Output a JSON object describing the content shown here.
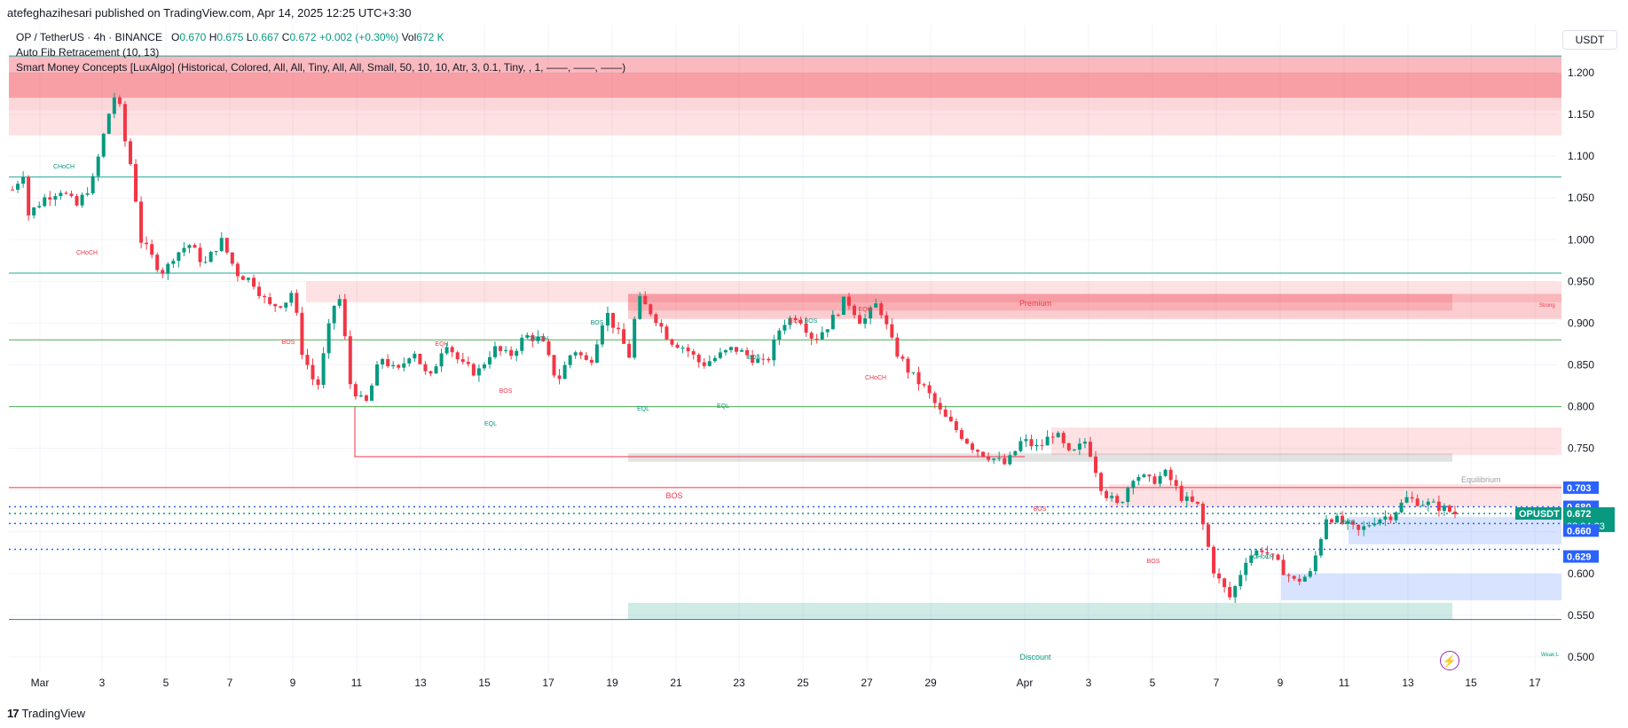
{
  "header": {
    "published": "atefeghazihesari published on TradingView.com, Apr 14, 2025 12:25 UTC+3:30"
  },
  "legend": {
    "symbol": "OP / TetherUS · 4h · BINANCE",
    "o_label": "O",
    "o_value": "0.670",
    "h_label": "H",
    "h_value": "0.675",
    "l_label": "L",
    "l_value": "0.667",
    "c_label": "C",
    "c_value": "0.672",
    "change": "+0.002 (+0.30%)",
    "vol_label": "Vol",
    "vol_value": "672 K",
    "indicator1": "Auto Fib Retracement (10, 13)",
    "indicator2": "Smart Money Concepts [LuxAlgo] (Historical, Colored, All, All, Tiny, All, All, Small, 50, 10, 10, Atr, 3, 0.1, Tiny, , 1, ——, ——, ——)"
  },
  "currency": "USDT",
  "footer": {
    "logo": "17",
    "brand": "TradingView"
  },
  "price_labels": {
    "top": "0.703",
    "second": "0.680",
    "symbol": "OPUSDT",
    "last": "0.672",
    "countdown": "03:04:23",
    "third": "0.660",
    "bottom": "0.629"
  },
  "colors": {
    "up": "#089981",
    "down": "#f23645",
    "blue": "#2962ff",
    "fib_teal": "#26a69a",
    "fib_green": "#4caf50",
    "fib_red": "#f23645"
  },
  "icons": {
    "alert": "lightning-bolt-icon"
  },
  "chart_data": {
    "type": "candlestick",
    "symbol": "OP / TetherUS",
    "interval": "4h",
    "ylim": [
      0.48,
      1.22
    ],
    "y_ticks": [
      "1.200",
      "1.150",
      "1.100",
      "1.050",
      "1.000",
      "0.950",
      "0.900",
      "0.850",
      "0.800",
      "0.750",
      "0.700",
      "0.650",
      "0.600",
      "0.550",
      "0.500"
    ],
    "x_ticks": [
      "Mar",
      "3",
      "5",
      "7",
      "9",
      "11",
      "13",
      "15",
      "17",
      "19",
      "21",
      "23",
      "25",
      "27",
      "29",
      "Apr",
      "3",
      "5",
      "7",
      "9",
      "11",
      "13",
      "15",
      "17"
    ],
    "path": [
      [
        0,
        1.06
      ],
      [
        1,
        1.09
      ],
      [
        1,
        1.03
      ],
      [
        2,
        1.05
      ],
      [
        3,
        1.06
      ],
      [
        4,
        1.04
      ],
      [
        5,
        1.07
      ],
      [
        6,
        1.15
      ],
      [
        6.5,
        1.18
      ],
      [
        7,
        1.12
      ],
      [
        7.5,
        1.08
      ],
      [
        8,
        1.0
      ],
      [
        9,
        0.97
      ],
      [
        9.5,
        0.96
      ],
      [
        10,
        0.98
      ],
      [
        11,
        0.995
      ],
      [
        12,
        0.97
      ],
      [
        13,
        1.0
      ],
      [
        14,
        0.96
      ],
      [
        15,
        0.95
      ],
      [
        16,
        0.92
      ],
      [
        17,
        0.925
      ],
      [
        17.5,
        0.94
      ],
      [
        18,
        0.87
      ],
      [
        19,
        0.82
      ],
      [
        20,
        0.92
      ],
      [
        20.5,
        0.93
      ],
      [
        21,
        0.83
      ],
      [
        22,
        0.8
      ],
      [
        23,
        0.86
      ],
      [
        24,
        0.84
      ],
      [
        25,
        0.87
      ],
      [
        26,
        0.83
      ],
      [
        27,
        0.88
      ],
      [
        28,
        0.85
      ],
      [
        29,
        0.84
      ],
      [
        30,
        0.87
      ],
      [
        31,
        0.86
      ],
      [
        32,
        0.885
      ],
      [
        33,
        0.88
      ],
      [
        34,
        0.83
      ],
      [
        35,
        0.87
      ],
      [
        36,
        0.85
      ],
      [
        37,
        0.915
      ],
      [
        38,
        0.88
      ],
      [
        38.5,
        0.86
      ],
      [
        39,
        0.93
      ],
      [
        40,
        0.91
      ],
      [
        41,
        0.88
      ],
      [
        42,
        0.87
      ],
      [
        43,
        0.85
      ],
      [
        44,
        0.86
      ],
      [
        45,
        0.87
      ],
      [
        46,
        0.86
      ],
      [
        47,
        0.85
      ],
      [
        48,
        0.9
      ],
      [
        49,
        0.91
      ],
      [
        50,
        0.88
      ],
      [
        51,
        0.9
      ],
      [
        52,
        0.93
      ],
      [
        53,
        0.9
      ],
      [
        54,
        0.925
      ],
      [
        55,
        0.87
      ],
      [
        56,
        0.84
      ],
      [
        57,
        0.82
      ],
      [
        58,
        0.79
      ],
      [
        59,
        0.77
      ],
      [
        60,
        0.75
      ],
      [
        61,
        0.74
      ],
      [
        62,
        0.73
      ],
      [
        63,
        0.76
      ],
      [
        64,
        0.75
      ],
      [
        65,
        0.77
      ],
      [
        66,
        0.74
      ],
      [
        67,
        0.76
      ],
      [
        68,
        0.7
      ],
      [
        69,
        0.68
      ],
      [
        70,
        0.72
      ],
      [
        71,
        0.71
      ],
      [
        72,
        0.72
      ],
      [
        73,
        0.69
      ],
      [
        74,
        0.68
      ],
      [
        75,
        0.6
      ],
      [
        76,
        0.57
      ],
      [
        77,
        0.62
      ],
      [
        78,
        0.63
      ],
      [
        79,
        0.61
      ],
      [
        80,
        0.59
      ],
      [
        81,
        0.6
      ],
      [
        82,
        0.67
      ],
      [
        83,
        0.66
      ],
      [
        84,
        0.65
      ],
      [
        85,
        0.665
      ],
      [
        86,
        0.67
      ],
      [
        87,
        0.69
      ],
      [
        88,
        0.685
      ],
      [
        89,
        0.68
      ],
      [
        90,
        0.672
      ]
    ],
    "fib_levels": [
      1.22,
      1.075,
      0.96,
      0.88,
      0.8,
      0.703
    ],
    "annotations": {
      "premium": "Premium",
      "equilibrium": "Equilibrium",
      "discount": "Discount",
      "strong": "Strong",
      "weak": "Weak L",
      "small": [
        {
          "t": "CHoCH",
          "c": "up",
          "x": "a1"
        },
        {
          "t": "CHoCH",
          "c": "down",
          "x": "a2"
        },
        {
          "t": "BOS",
          "c": "down",
          "x": "a3"
        },
        {
          "t": "EQH",
          "c": "down",
          "x": "a4"
        },
        {
          "t": "BOS",
          "c": "down",
          "x": "a5"
        },
        {
          "t": "EQL",
          "c": "up",
          "x": "a6"
        },
        {
          "t": "CHoCH",
          "c": "up",
          "x": "a7"
        },
        {
          "t": "BOS",
          "c": "up",
          "x": "a8"
        },
        {
          "t": "EQL",
          "c": "up",
          "x": "a9"
        },
        {
          "t": "EQL",
          "c": "up",
          "x": "a10"
        },
        {
          "t": "BOS",
          "c": "up",
          "x": "a11"
        },
        {
          "t": "EQH",
          "c": "down",
          "x": "a12"
        },
        {
          "t": "BOS",
          "c": "up",
          "x": "a13"
        },
        {
          "t": "EQH",
          "c": "down",
          "x": "a14"
        },
        {
          "t": "CHoCH",
          "c": "down",
          "x": "a15"
        },
        {
          "t": "BOS",
          "c": "down",
          "x": "a16"
        },
        {
          "t": "BOS",
          "c": "down",
          "x": "a17"
        },
        {
          "t": "CHoCH",
          "c": "up",
          "x": "a18"
        },
        {
          "t": "BOS",
          "c": "up",
          "x": "a19"
        }
      ],
      "big_bos": "BOS"
    }
  }
}
